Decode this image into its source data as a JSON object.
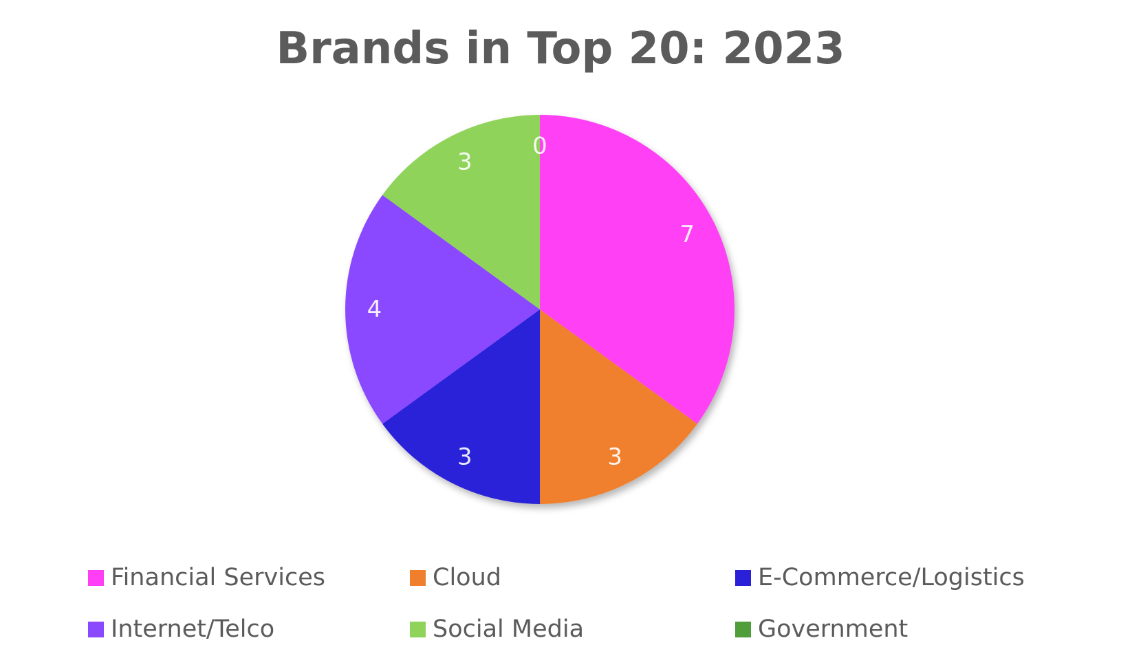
{
  "chart_data": {
    "type": "pie",
    "title": "Brands in Top 20: 2023",
    "categories": [
      "Financial Services",
      "Cloud",
      "E-Commerce/Logistics",
      "Internet/Telco",
      "Social Media",
      "Government"
    ],
    "values": [
      7,
      3,
      3,
      4,
      3,
      0
    ],
    "colors": [
      "#ff3ff5",
      "#f07f2d",
      "#2a20d8",
      "#8a48ff",
      "#8fd35a",
      "#4f9e3a"
    ],
    "data_labels": [
      "7",
      "3",
      "3",
      "4",
      "3",
      "0"
    ],
    "legend": {
      "placement": "bottom",
      "entries": [
        "Financial Services",
        "Cloud",
        "E-Commerce/Logistics",
        "Internet/Telco",
        "Social Media",
        "Government"
      ]
    }
  }
}
